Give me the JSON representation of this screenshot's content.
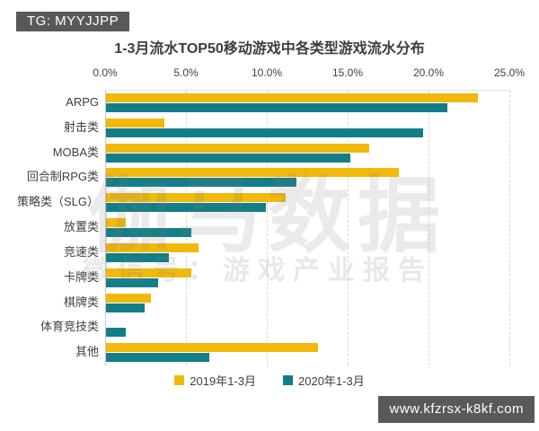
{
  "badges": {
    "top_left": "TG: MYYJJPP",
    "bottom_right": "www.kfzrsx-k8kf.com"
  },
  "title": "1-3月流水TOP50移动游戏中各类型游戏流水分布",
  "watermark": {
    "main": "伽马数据",
    "sub": "微信号：游戏产业报告"
  },
  "legend": [
    {
      "label": "2019年1-3月",
      "color": "#F0B90C"
    },
    {
      "label": "2020年1-3月",
      "color": "#147E88"
    }
  ],
  "colors": {
    "bar_2019": "#F0B90C",
    "bar_2020": "#147E88",
    "badge_bg": "#58595b",
    "gridline": "#d8d8d8",
    "axis_line": "#c9c9c9",
    "text": "#3f3f3f"
  },
  "chart_data": {
    "type": "bar",
    "orientation": "horizontal",
    "title": "1-3月流水TOP50移动游戏中各类型游戏流水分布",
    "categories": [
      "ARPG",
      "射击类",
      "MOBA类",
      "回合制RPG类",
      "策略类（SLG）",
      "放置类",
      "竞速类",
      "卡牌类",
      "棋牌类",
      "体育竞技类",
      "其他"
    ],
    "series": [
      {
        "name": "2019年1-3月",
        "color": "#F0B90C",
        "values": [
          23.0,
          3.6,
          16.3,
          18.1,
          11.1,
          1.2,
          5.7,
          5.3,
          2.8,
          0.0,
          13.1
        ]
      },
      {
        "name": "2020年1-3月",
        "color": "#147E88",
        "values": [
          21.1,
          19.6,
          15.1,
          11.8,
          9.9,
          5.3,
          3.9,
          3.2,
          2.4,
          1.2,
          6.4
        ]
      }
    ],
    "x_ticks": [
      "0.0%",
      "5.0%",
      "10.0%",
      "15.0%",
      "20.0%",
      "25.0%"
    ],
    "xlim": [
      0,
      25
    ],
    "unit": "percent",
    "grid": "vertical-dashed",
    "legend_position": "bottom"
  }
}
